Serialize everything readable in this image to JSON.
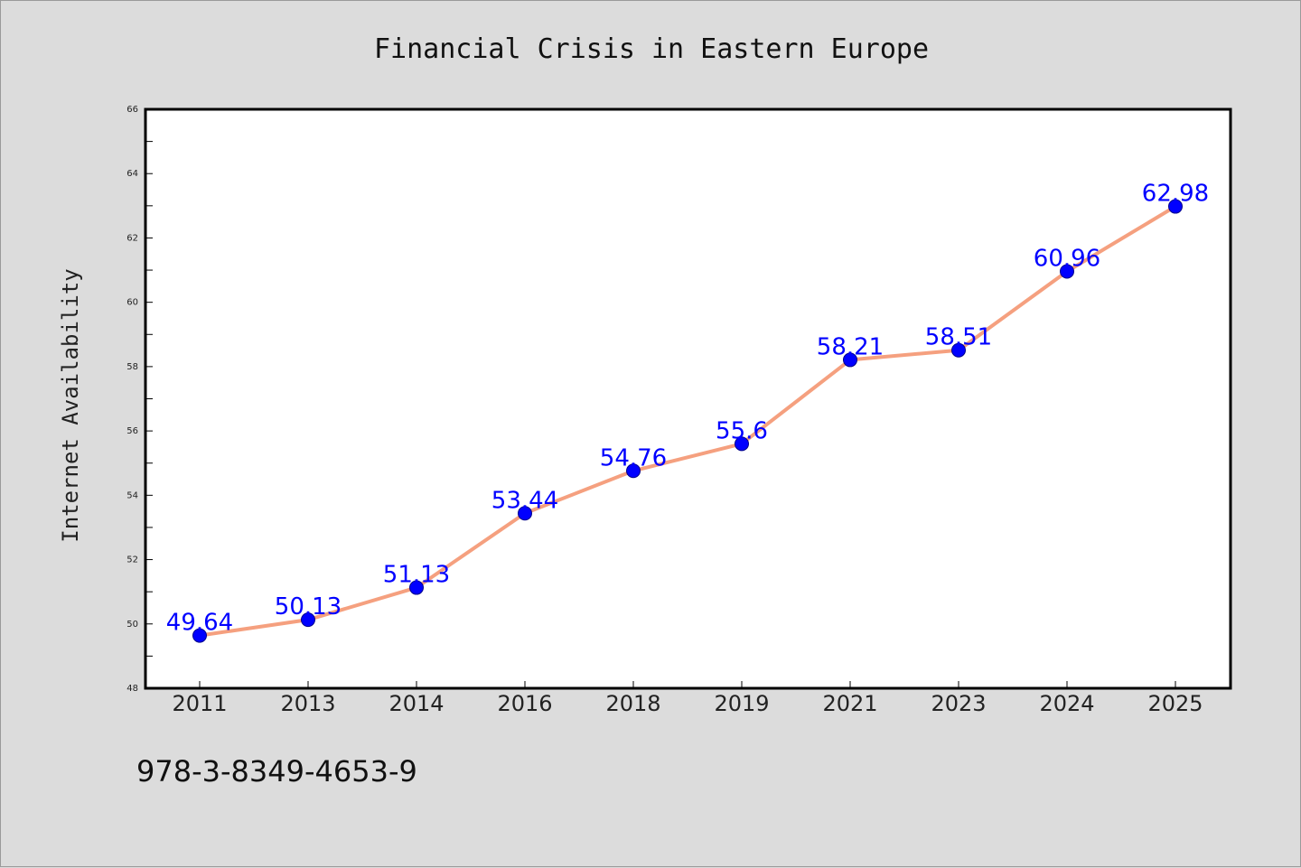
{
  "chart_data": {
    "type": "line",
    "title": "Financial Crisis in Eastern Europe",
    "xlabel": "",
    "ylabel": "Internet Availability",
    "categories": [
      "2011",
      "2013",
      "2014",
      "2016",
      "2018",
      "2019",
      "2021",
      "2023",
      "2024",
      "2025"
    ],
    "series": [
      {
        "values": [
          49.64,
          50.13,
          51.13,
          53.44,
          54.76,
          55.6,
          58.21,
          58.51,
          60.96,
          62.98
        ],
        "data_labels": [
          "49.64",
          "50.13",
          "51.13",
          "53.44",
          "54.76",
          "55.6",
          "58.21",
          "58.51",
          "60.96",
          "62.98"
        ]
      }
    ],
    "ylim": [
      48,
      66
    ],
    "y_ticks": [
      "48",
      "50",
      "52",
      "54",
      "56",
      "58",
      "60",
      "62",
      "64",
      "66"
    ],
    "grid": false,
    "legend": "none",
    "line_color": "#f5a07f",
    "marker_color": "#0000ff",
    "label_color": "#0000ff",
    "plot_background": "#ffffff",
    "figure_background": "#dcdcdc"
  },
  "footer": {
    "code": "978-3-8349-4653-9"
  }
}
